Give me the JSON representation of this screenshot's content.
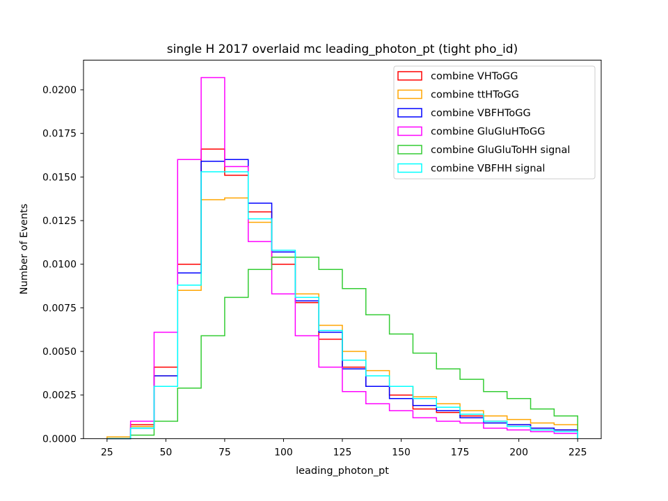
{
  "chart_data": {
    "type": "step-histogram",
    "title": "single H 2017 overlaid mc leading_photon_pt (tight pho_id)",
    "xlabel": "leading_photon_pt",
    "ylabel": "Number of Events",
    "xlim": [
      15,
      235
    ],
    "ylim": [
      0,
      0.0217
    ],
    "xticks": [
      25,
      50,
      75,
      100,
      125,
      150,
      175,
      200,
      225
    ],
    "xtick_labels": [
      "25",
      "50",
      "75",
      "100",
      "125",
      "150",
      "175",
      "200",
      "225"
    ],
    "yticks": [
      0,
      0.0025,
      0.005,
      0.0075,
      0.01,
      0.0125,
      0.015,
      0.0175,
      0.02
    ],
    "ytick_labels": [
      "0.0000",
      "0.0025",
      "0.0050",
      "0.0075",
      "0.0100",
      "0.0125",
      "0.0150",
      "0.0175",
      "0.0200"
    ],
    "bin_edges": [
      25,
      35,
      45,
      55,
      65,
      75,
      85,
      95,
      105,
      115,
      125,
      135,
      145,
      155,
      165,
      175,
      185,
      195,
      205,
      215,
      225
    ],
    "legend_position": "top-right",
    "series": [
      {
        "name": "combine VHToGG",
        "color": "#ff0000",
        "values": [
          0.0,
          0.0008,
          0.0041,
          0.01,
          0.0166,
          0.0151,
          0.013,
          0.01,
          0.0078,
          0.0057,
          0.0041,
          0.003,
          0.0025,
          0.0017,
          0.0015,
          0.0013,
          0.001,
          0.0008,
          0.0006,
          0.0005
        ]
      },
      {
        "name": "combine ttHToGG",
        "color": "#ffa500",
        "values": [
          0.0001,
          0.0007,
          0.0036,
          0.0085,
          0.0137,
          0.0138,
          0.0124,
          0.0104,
          0.0083,
          0.0065,
          0.005,
          0.0039,
          0.003,
          0.0024,
          0.002,
          0.0016,
          0.0013,
          0.0011,
          0.0009,
          0.0008
        ]
      },
      {
        "name": "combine VBFHToGG",
        "color": "#0000ff",
        "values": [
          0.0,
          0.0006,
          0.0036,
          0.0095,
          0.0159,
          0.016,
          0.0135,
          0.0107,
          0.0079,
          0.0061,
          0.004,
          0.003,
          0.0023,
          0.0019,
          0.0016,
          0.0012,
          0.0009,
          0.0008,
          0.0006,
          0.0005
        ]
      },
      {
        "name": "combine GluGluHToGG",
        "color": "#ff00ff",
        "values": [
          0.0,
          0.001,
          0.0061,
          0.016,
          0.0207,
          0.0156,
          0.0113,
          0.0083,
          0.0059,
          0.0041,
          0.0027,
          0.002,
          0.0016,
          0.0012,
          0.001,
          0.0009,
          0.0006,
          0.0005,
          0.0004,
          0.0003
        ]
      },
      {
        "name": "combine GluGluToHH signal",
        "color": "#33cc33",
        "values": [
          0.0,
          0.0002,
          0.001,
          0.0029,
          0.0059,
          0.0081,
          0.0097,
          0.0104,
          0.0104,
          0.0097,
          0.0086,
          0.0071,
          0.006,
          0.0049,
          0.004,
          0.0034,
          0.0027,
          0.0023,
          0.0017,
          0.0013
        ]
      },
      {
        "name": "combine VBFHH signal",
        "color": "#00ffff",
        "values": [
          0.0,
          0.0006,
          0.003,
          0.0088,
          0.0153,
          0.0153,
          0.0126,
          0.0108,
          0.0081,
          0.0062,
          0.0045,
          0.0036,
          0.003,
          0.0023,
          0.0018,
          0.0014,
          0.001,
          0.0007,
          0.0005,
          0.0004
        ]
      }
    ]
  }
}
